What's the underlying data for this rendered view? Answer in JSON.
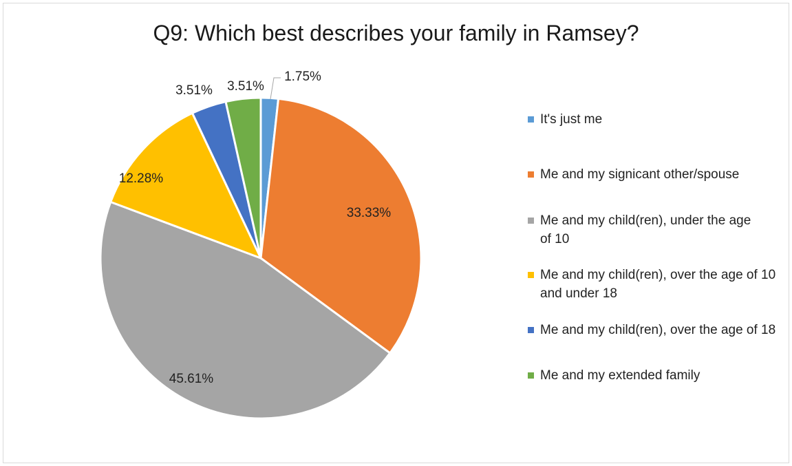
{
  "chart_data": {
    "type": "pie",
    "title": "Q9: Which best describes your family in Ramsey?",
    "slices": [
      {
        "label": "It's just me",
        "value": 1.75,
        "display": "1.75%",
        "color": "#5b9bd5"
      },
      {
        "label": "Me and my signicant other/spouse",
        "value": 33.33,
        "display": "33.33%",
        "color": "#ed7d31"
      },
      {
        "label": "Me and my child(ren), under the age of 10",
        "value": 45.61,
        "display": "45.61%",
        "color": "#a5a5a5"
      },
      {
        "label": "Me and my child(ren), over the age of 10 and under 18",
        "value": 12.28,
        "display": "12.28%",
        "color": "#ffc000"
      },
      {
        "label": "Me and my child(ren), over the age of 18",
        "value": 3.51,
        "display": "3.51%",
        "color": "#4472c4"
      },
      {
        "label": "Me and my extended family",
        "value": 3.51,
        "display": "3.51%",
        "color": "#70ad47"
      }
    ],
    "legend_position": "right",
    "start_angle_deg": 0,
    "direction": "clockwise"
  }
}
